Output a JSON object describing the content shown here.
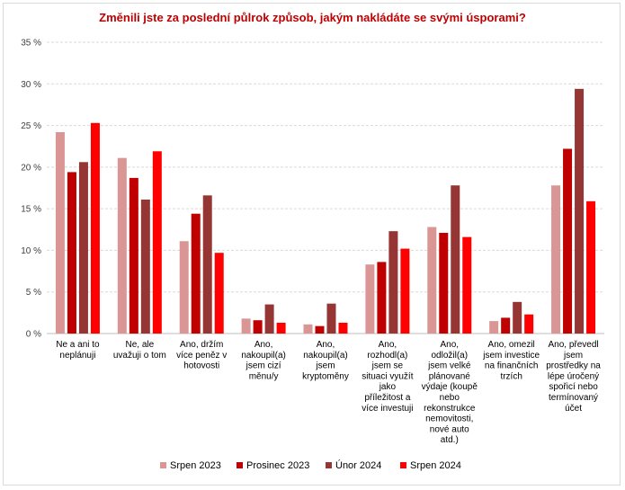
{
  "chart_data": {
    "type": "bar",
    "title": "Změnili jste za poslední půlrok způsob, jakým nakládáte se svými úsporami?",
    "ylim": [
      0,
      35
    ],
    "yticks": [
      0,
      5,
      10,
      15,
      20,
      25,
      30,
      35
    ],
    "ytick_labels": [
      "0 %",
      "5 %",
      "10 %",
      "15 %",
      "20 %",
      "25 %",
      "30 %",
      "35 %"
    ],
    "legend_position": "bottom",
    "grid": true,
    "categories": [
      [
        "Ne a ani to",
        "neplánuji"
      ],
      [
        "Ne, ale",
        "uvažuji o tom"
      ],
      [
        "Ano, držím",
        "více peněz v",
        "hotovosti"
      ],
      [
        "Ano,",
        "nakoupil(a)",
        "jsem cizí",
        "měnu/y"
      ],
      [
        "Ano,",
        "nakoupil(a)",
        "jsem",
        "kryptoměny"
      ],
      [
        "Ano,",
        "rozhodl(a)",
        "jsem se",
        "situaci využít",
        "jako",
        "příležitost a",
        "více investuji"
      ],
      [
        "Ano,",
        "odložil(a)",
        "jsem velké",
        "plánované",
        "výdaje (koupě",
        "nebo",
        "rekonstrukce",
        "nemovitosti,",
        "nové auto",
        "atd.)"
      ],
      [
        "Ano, omezil",
        "jsem investice",
        "na finančních",
        "trzích"
      ],
      [
        "Ano, převedl",
        "jsem",
        "prostředky na",
        "lépe úročený",
        "spořicí nebo",
        "termínovaný",
        "účet"
      ]
    ],
    "series": [
      {
        "name": "Srpen 2023",
        "color": "#d99694",
        "values": [
          24.2,
          21.1,
          11.1,
          1.8,
          1.1,
          8.3,
          12.8,
          1.5,
          17.8
        ]
      },
      {
        "name": "Prosinec 2023",
        "color": "#c00000",
        "values": [
          19.4,
          18.7,
          14.4,
          1.6,
          0.9,
          8.6,
          12.1,
          1.9,
          22.2
        ]
      },
      {
        "name": "Únor 2024",
        "color": "#963634",
        "values": [
          20.6,
          16.1,
          16.6,
          3.5,
          3.6,
          12.3,
          17.8,
          3.8,
          29.4
        ]
      },
      {
        "name": "Srpen 2024",
        "color": "#ff0000",
        "values": [
          25.3,
          21.9,
          9.7,
          1.3,
          1.3,
          10.2,
          11.6,
          2.3,
          15.9
        ]
      }
    ]
  }
}
